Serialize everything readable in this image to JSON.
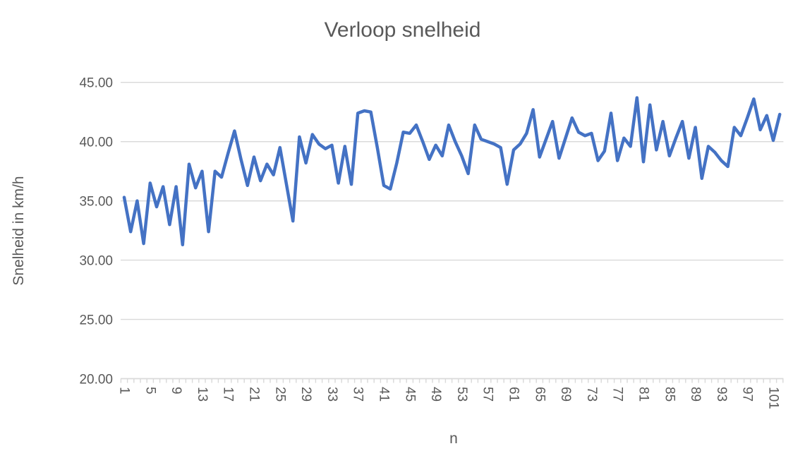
{
  "chart_data": {
    "type": "line",
    "title": "Verloop snelheid",
    "xlabel": "n",
    "ylabel": "Snelheid in km/h",
    "x_start": 1,
    "n_points": 102,
    "values": [
      35.3,
      32.4,
      35.0,
      31.4,
      36.5,
      34.5,
      36.2,
      33.0,
      36.2,
      31.3,
      38.1,
      36.1,
      37.5,
      32.4,
      37.5,
      37.0,
      39.0,
      40.9,
      38.5,
      36.3,
      38.7,
      36.7,
      38.1,
      37.2,
      39.5,
      36.4,
      33.3,
      40.4,
      38.2,
      40.6,
      39.8,
      39.4,
      39.7,
      36.5,
      39.6,
      36.4,
      42.4,
      42.6,
      42.5,
      39.5,
      36.3,
      36.0,
      38.2,
      40.8,
      40.7,
      41.4,
      40.0,
      38.5,
      39.7,
      38.8,
      41.4,
      40.0,
      38.8,
      37.3,
      41.4,
      40.2,
      40.0,
      39.8,
      39.5,
      36.4,
      39.3,
      39.8,
      40.7,
      42.7,
      38.7,
      40.2,
      41.7,
      38.6,
      40.3,
      42.0,
      40.8,
      40.5,
      40.7,
      38.4,
      39.2,
      42.4,
      38.4,
      40.3,
      39.6,
      43.7,
      38.3,
      43.1,
      39.3,
      41.7,
      38.8,
      40.3,
      41.7,
      38.6,
      41.2,
      36.9,
      39.6,
      39.1,
      38.4,
      37.9,
      41.2,
      40.5,
      42.0,
      43.6,
      41.0,
      42.2,
      40.1,
      42.3
    ],
    "xticks": [
      1,
      5,
      9,
      13,
      17,
      21,
      25,
      29,
      33,
      37,
      41,
      45,
      49,
      53,
      57,
      61,
      65,
      69,
      73,
      77,
      81,
      85,
      89,
      93,
      97,
      101
    ],
    "yticks": [
      45,
      40,
      35,
      30,
      25,
      20
    ],
    "ytick_labels": [
      "45.00",
      "40.00",
      "35.00",
      "30.00",
      "25.00",
      "20.00"
    ],
    "ylim": [
      20,
      45
    ],
    "grid": "horizontal-only",
    "legend": "none",
    "line_color": "#4472C4",
    "grid_color": "#D9D9D9",
    "text_color": "#595959"
  }
}
